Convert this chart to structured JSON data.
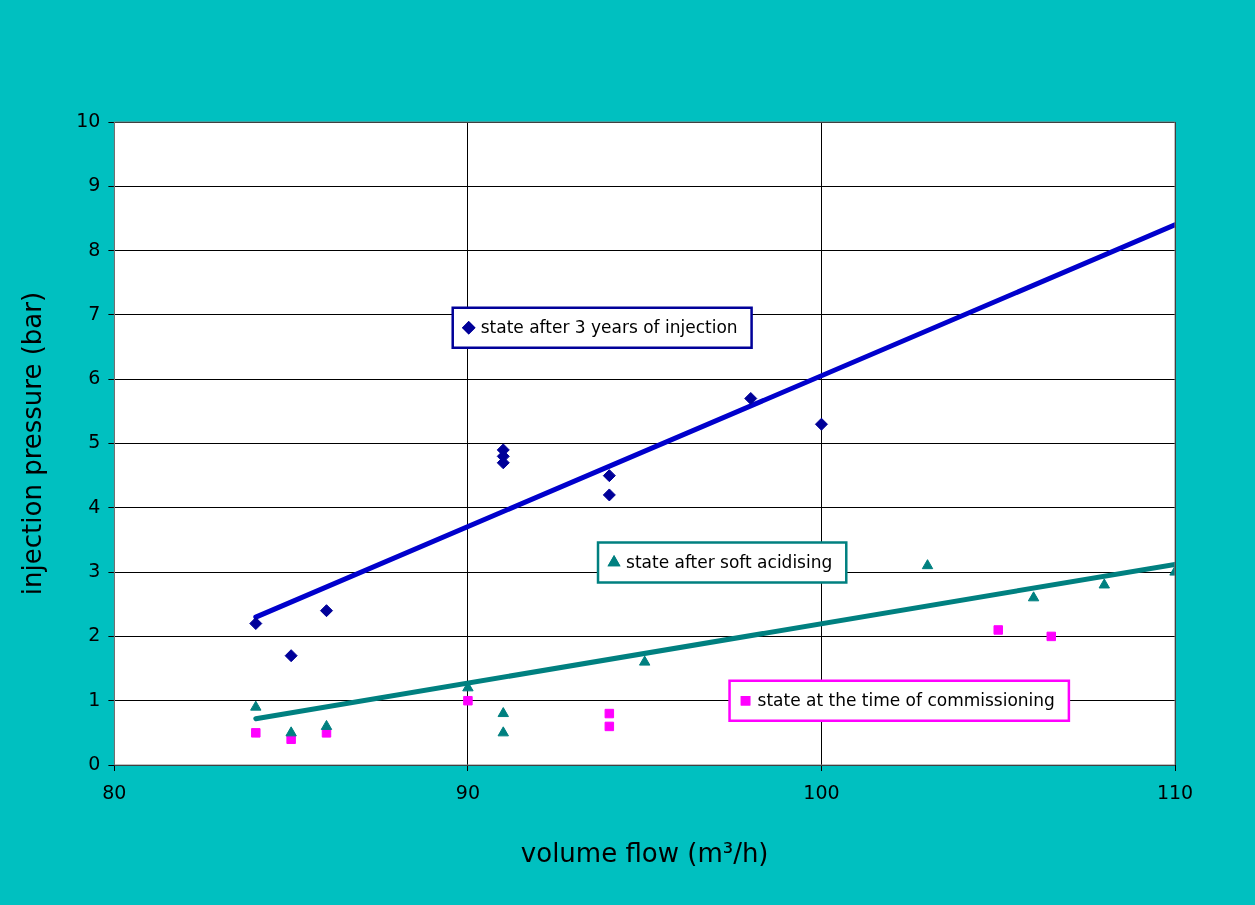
{
  "chart_data": {
    "type": "scatter",
    "xlabel": "volume flow (m³/h)",
    "ylabel": "injection pressure (bar)",
    "xlim": [
      80,
      110
    ],
    "xticks": [
      80,
      90,
      100,
      110
    ],
    "ylim": [
      0,
      10
    ],
    "yticks": [
      0,
      1,
      2,
      3,
      4,
      5,
      6,
      7,
      8,
      9,
      10
    ],
    "grid": true,
    "legend": "center",
    "series": [
      {
        "name": "state after 3 years of injection",
        "color": "#000099",
        "marker": "diamond",
        "x": [
          84,
          85,
          86,
          91,
          91,
          91,
          94,
          94,
          98,
          100
        ],
        "values": [
          2.2,
          1.7,
          2.4,
          4.9,
          4.8,
          4.7,
          4.5,
          4.2,
          5.7,
          5.3
        ]
      },
      {
        "name": "state after soft acidising",
        "color": "#008080",
        "marker": "triangle",
        "x": [
          84,
          85,
          86,
          90,
          91,
          91,
          95,
          103,
          106,
          108,
          110
        ],
        "values": [
          0.9,
          0.5,
          0.6,
          1.2,
          0.8,
          0.5,
          1.6,
          3.1,
          2.6,
          2.8,
          3.0
        ]
      },
      {
        "name": "state at the time of commissioning",
        "color": "#ff00ff",
        "marker": "square",
        "x": [
          84,
          85,
          86,
          90,
          94,
          94,
          105,
          106.5
        ],
        "values": [
          0.5,
          0.4,
          0.5,
          1.0,
          0.8,
          0.6,
          2.1,
          2.0
        ]
      },
      {
        "type": "line",
        "color": "#0000cc",
        "x": [
          84,
          110
        ],
        "values": [
          2.3,
          8.4
        ]
      },
      {
        "type": "line",
        "color": "#008080",
        "x": [
          84,
          110
        ],
        "values": [
          0.72,
          3.12
        ]
      }
    ]
  }
}
